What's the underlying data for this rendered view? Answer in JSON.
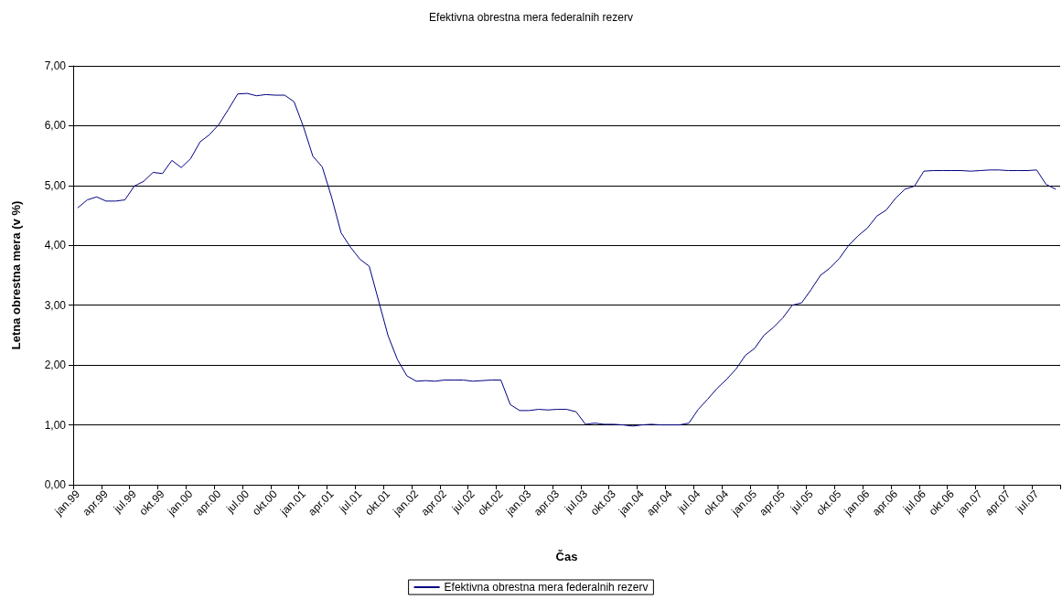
{
  "chart_data": {
    "type": "line",
    "title": "Efektivna obrestna mera federalnih rezerv",
    "xlabel": "Čas",
    "ylabel": "Letna obrestna mera (v %)",
    "categories": [
      "jan.99",
      null,
      null,
      "apr.99",
      null,
      null,
      "jul.99",
      null,
      null,
      "okt.99",
      null,
      null,
      "jan.00",
      null,
      null,
      "apr.00",
      null,
      null,
      "jul.00",
      null,
      null,
      "okt.00",
      null,
      null,
      "jan.01",
      null,
      null,
      "apr.01",
      null,
      null,
      "jul.01",
      null,
      null,
      "okt.01",
      null,
      null,
      "jan.02",
      null,
      null,
      "apr.02",
      null,
      null,
      "jul.02",
      null,
      null,
      "okt.02",
      null,
      null,
      "jan.03",
      null,
      null,
      "apr.03",
      null,
      null,
      "jul.03",
      null,
      null,
      "okt.03",
      null,
      null,
      "jan.04",
      null,
      null,
      "apr.04",
      null,
      null,
      "jul.04",
      null,
      null,
      "okt.04",
      null,
      null,
      "jan.05",
      null,
      null,
      "apr.05",
      null,
      null,
      "jul.05",
      null,
      null,
      "okt.05",
      null,
      null,
      "jan.06",
      null,
      null,
      "apr.06",
      null,
      null,
      "jul.06",
      null,
      null,
      "okt.06",
      null,
      null,
      "jan.07",
      null,
      null,
      "apr.07",
      null,
      null,
      "jul.07",
      null,
      null
    ],
    "series": [
      {
        "name": "Efektivna obrestna mera federalnih rezerv",
        "color": "#000080",
        "values": [
          4.63,
          4.76,
          4.81,
          4.74,
          4.74,
          4.76,
          4.99,
          5.07,
          5.22,
          5.2,
          5.42,
          5.3,
          5.45,
          5.73,
          5.85,
          6.02,
          6.27,
          6.53,
          6.54,
          6.5,
          6.52,
          6.51,
          6.51,
          6.4,
          5.98,
          5.49,
          5.31,
          4.8,
          4.21,
          3.97,
          3.77,
          3.65,
          3.07,
          2.49,
          2.09,
          1.82,
          1.73,
          1.74,
          1.73,
          1.75,
          1.75,
          1.75,
          1.73,
          1.74,
          1.75,
          1.75,
          1.34,
          1.24,
          1.24,
          1.26,
          1.25,
          1.26,
          1.26,
          1.22,
          1.01,
          1.03,
          1.01,
          1.01,
          1.0,
          0.98,
          1.0,
          1.01,
          1.0,
          1.0,
          1.0,
          1.03,
          1.26,
          1.43,
          1.61,
          1.76,
          1.93,
          2.16,
          2.28,
          2.5,
          2.63,
          2.79,
          3.0,
          3.04,
          3.26,
          3.5,
          3.62,
          3.78,
          4.0,
          4.16,
          4.29,
          4.49,
          4.59,
          4.79,
          4.94,
          4.99,
          5.24,
          5.25,
          5.25,
          5.25,
          5.25,
          5.24,
          5.25,
          5.26,
          5.26,
          5.25,
          5.25,
          5.25,
          5.26,
          5.02,
          4.94
        ]
      }
    ],
    "ylim": [
      0,
      7
    ],
    "yticks": [
      {
        "value": 0,
        "label": "0,00"
      },
      {
        "value": 1,
        "label": "1,00"
      },
      {
        "value": 2,
        "label": "2,00"
      },
      {
        "value": 3,
        "label": "3,00"
      },
      {
        "value": 4,
        "label": "4,00"
      },
      {
        "value": 5,
        "label": "5,00"
      },
      {
        "value": 6,
        "label": "6,00"
      },
      {
        "value": 7,
        "label": "7,00"
      }
    ],
    "grid": "y",
    "legend": "bottom",
    "marker": "none",
    "line_style": "solid"
  }
}
